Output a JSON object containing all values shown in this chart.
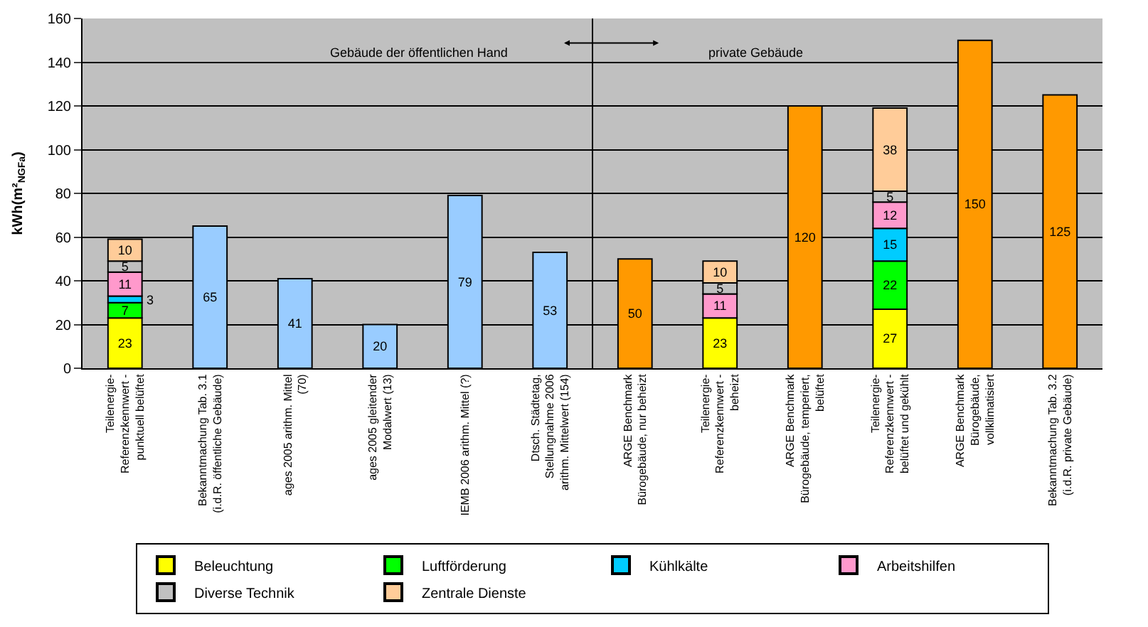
{
  "chart_data": {
    "type": "bar",
    "stacked": true,
    "ylabel": "kWh(m²$_{NGFa}$)",
    "categories": [
      "Teilenergie-\nReferenzkennwert -\npunktuell belüftet",
      "Bekanntmachung Tab. 3.1\n(i.d.R. öffentliche Gebäude)",
      "ages 2005 arithm. Mittel\n(70)",
      "ages 2005 gleitender\nModalwert (13)",
      "IEMB 2006 arithm. Mittel (?)",
      "Dtsch. Städtetag,\nStellungnahme 2006\narithm. Mittelwert (154)",
      "ARGE Benchmark\nBürogebäude, nur beheizt",
      "Teilenergie-\nReferenzkennwert -\nbeheizt",
      "ARGE Benchmark\nBürogebäude, temperiert,\nbelüftet",
      "Teilenergie-\nReferenzkennwert -\nbelüftet und gekühlt",
      "ARGE Benchmark\nBürogebäude,\nvollklimatisiert",
      "Bekanntmachung Tab. 3.2\n(i.d.R. private Gebäude)"
    ],
    "series": [
      {
        "name": "Beleuchtung",
        "color": "#ffff00",
        "values": [
          23,
          null,
          null,
          null,
          null,
          null,
          null,
          23,
          null,
          27,
          null,
          null
        ]
      },
      {
        "name": "Luftförderung",
        "color": "#00ff00",
        "values": [
          7,
          null,
          null,
          null,
          null,
          null,
          null,
          null,
          null,
          22,
          null,
          null
        ]
      },
      {
        "name": "Kühlkälte",
        "color": "#00ccff",
        "values": [
          3,
          null,
          null,
          null,
          null,
          null,
          null,
          null,
          null,
          15,
          null,
          null
        ]
      },
      {
        "name": "Arbeitshilfen",
        "color": "#ff99cc",
        "values": [
          11,
          null,
          null,
          null,
          null,
          null,
          null,
          11,
          null,
          12,
          null,
          null
        ]
      },
      {
        "name": "Diverse Technik",
        "color": "#c0c0c0",
        "values": [
          5,
          null,
          null,
          null,
          null,
          null,
          null,
          5,
          null,
          5,
          null,
          null
        ]
      },
      {
        "name": "Zentrale Dienste",
        "color": "#ffcc99",
        "values": [
          10,
          null,
          null,
          null,
          null,
          null,
          null,
          10,
          null,
          38,
          null,
          null
        ]
      },
      {
        "colors": [
          "#99ccff",
          "#99ccff",
          "#99ccff",
          "#99ccff",
          "#99ccff",
          "#99ccff",
          "#ff9900",
          "#ff9900",
          "#ff9900",
          "#ff9900",
          "#ff9900",
          "#ff9900"
        ],
        "values": [
          null,
          65,
          41,
          20,
          79,
          53,
          50,
          null,
          120,
          null,
          150,
          125
        ]
      }
    ],
    "ylim": [
      0,
      160
    ],
    "yticks": [
      0,
      20,
      40,
      60,
      80,
      100,
      120,
      140,
      160
    ],
    "grid": "y",
    "legend": "bottom",
    "data_labels": true,
    "annotations": [
      "Gebäude der öffentlichen Hand",
      "private Gebäude"
    ]
  }
}
